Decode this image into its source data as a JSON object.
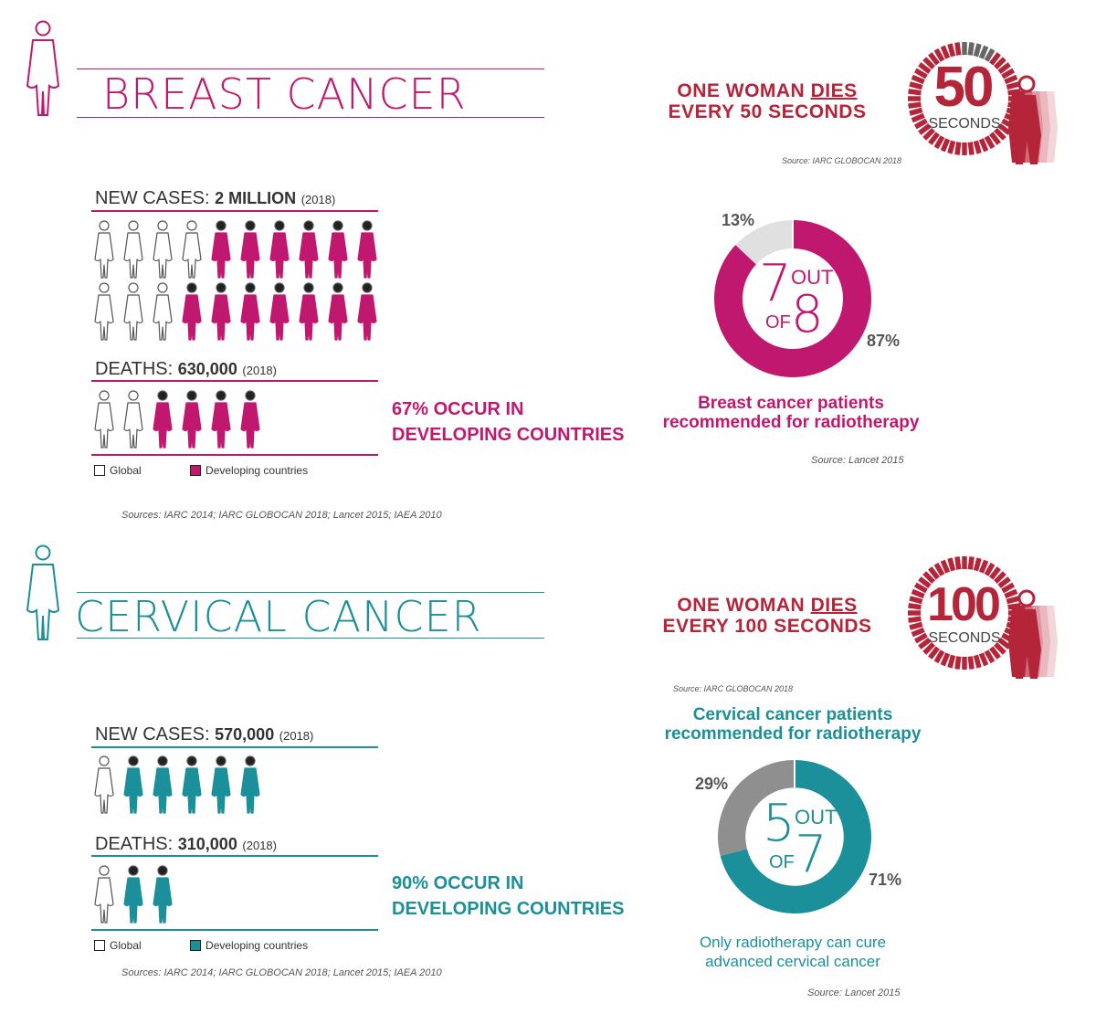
{
  "colors": {
    "breast": "#c0186f",
    "cervical": "#1b8f9a",
    "dies": "#b5253a",
    "grey": "#e0e0e0",
    "dark_grey": "#8f8f8f"
  },
  "breast": {
    "title": "BREAST CANCER",
    "new_cases_label": "NEW CASES:",
    "new_cases_value": "2 MILLION",
    "new_cases_year": "(2018)",
    "deaths_label": "DEATHS:",
    "deaths_value": "630,000",
    "deaths_year": "(2018)",
    "occur_line1": "67% OCCUR IN",
    "occur_line2": "DEVELOPING COUNTRIES",
    "legend_global": "Global",
    "legend_developing": "Developing countries",
    "sources": "Sources: IARC 2014; IARC GLOBOCAN 2018; Lancet 2015; IAEA 2010",
    "dies_line1_pre": "ONE WOMAN ",
    "dies_line1_em": "DIES",
    "dies_line2": "EVERY 50 SECONDS",
    "clock_number": "50",
    "clock_unit": "SECONDS",
    "clock_fraction": 0.1,
    "dies_source": "Source: IARC GLOBOCAN 2018",
    "donut_caption_line1": "Breast cancer patients",
    "donut_caption_line2": "recommended for radiotherapy",
    "donut_source": "Source: Lancet 2015",
    "ratio_num": "7",
    "ratio_out": "OUT",
    "ratio_of": "OF",
    "ratio_den": "8"
  },
  "cervical": {
    "title": "CERVICAL CANCER",
    "new_cases_label": "NEW CASES:",
    "new_cases_value": "570,000",
    "new_cases_year": "(2018)",
    "deaths_label": "DEATHS:",
    "deaths_value": "310,000",
    "deaths_year": "(2018)",
    "occur_line1": "90% OCCUR IN",
    "occur_line2": "DEVELOPING COUNTRIES",
    "legend_global": "Global",
    "legend_developing": "Developing countries",
    "sources": "Sources: IARC 2014; IARC GLOBOCAN 2018; Lancet 2015; IAEA 2010",
    "dies_line1_pre": "ONE WOMAN ",
    "dies_line1_em": "DIES",
    "dies_line2": "EVERY 100 SECONDS",
    "clock_number": "100",
    "clock_unit": "SECONDS",
    "clock_fraction": 0,
    "dies_source": "Source: IARC GLOBOCAN 2018",
    "donut_caption_line1": "Cervical cancer patients",
    "donut_caption_line2": "recommended for radiotherapy",
    "cure_line1": "Only radiotherapy can cure",
    "cure_line2": "advanced cervical cancer",
    "donut_source": "Source: Lancet 2015",
    "ratio_num": "5",
    "ratio_out": "OUT",
    "ratio_of": "OF",
    "ratio_den": "7"
  },
  "chart_data": [
    {
      "type": "pictogram",
      "name_ref": "breast.new_cases",
      "rows": [
        {
          "global": 4,
          "developing": 6
        },
        {
          "global": 3,
          "developing": 7
        }
      ]
    },
    {
      "type": "pictogram",
      "name_ref": "breast.deaths",
      "rows": [
        {
          "global": 2,
          "developing": 4
        }
      ]
    },
    {
      "type": "pie",
      "title": "Breast cancer patients recommended for radiotherapy",
      "categories": [
        "Recommended",
        "Not recommended"
      ],
      "values": [
        87,
        13
      ],
      "labels": [
        "87%",
        "13%"
      ]
    },
    {
      "type": "pictogram",
      "name_ref": "cervical.new_cases",
      "rows": [
        {
          "global": 1,
          "developing": 5
        }
      ]
    },
    {
      "type": "pictogram",
      "name_ref": "cervical.deaths",
      "rows": [
        {
          "global": 1,
          "developing": 2
        }
      ]
    },
    {
      "type": "pie",
      "title": "Cervical cancer patients recommended for radiotherapy",
      "categories": [
        "Recommended",
        "Not recommended"
      ],
      "values": [
        71,
        29
      ],
      "labels": [
        "71%",
        "29%"
      ]
    }
  ]
}
